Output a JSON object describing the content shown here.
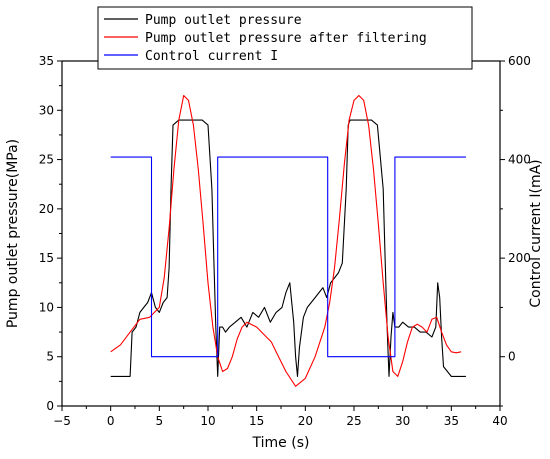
{
  "chart_data": {
    "type": "line",
    "xlabel": "Time (s)",
    "ylabel_left": "Pump outlet pressure(MPa)",
    "ylabel_right": "Control current I(mA)",
    "xlim": [
      -5,
      40
    ],
    "ylim_left": [
      0,
      35
    ],
    "ylim_right": [
      -100,
      600
    ],
    "x_ticks": [
      -5,
      0,
      5,
      10,
      15,
      20,
      25,
      30,
      35,
      40
    ],
    "y_left_ticks": [
      0,
      5,
      10,
      15,
      20,
      25,
      30,
      35
    ],
    "y_right_ticks": [
      0,
      200,
      400,
      600
    ],
    "legend_position": "top-left",
    "grid": false,
    "series": [
      {
        "name": "Pump outlet pressure",
        "axis": "left",
        "color": "#000000",
        "x": [
          0,
          1,
          2,
          2.2,
          2.6,
          3.0,
          3.4,
          3.8,
          4.2,
          4.6,
          5.0,
          5.4,
          5.8,
          6.0,
          6.2,
          6.4,
          7.0,
          7.6,
          8.2,
          8.8,
          9.4,
          10.0,
          10.4,
          10.6,
          10.8,
          11.0,
          11.2,
          11.5,
          11.8,
          12.2,
          12.8,
          13.4,
          14.0,
          14.6,
          15.2,
          15.8,
          16.4,
          17.0,
          17.6,
          18.0,
          18.4,
          18.8,
          19.0,
          19.2,
          19.4,
          19.8,
          20.2,
          20.6,
          21.0,
          21.4,
          21.8,
          22.2,
          22.6,
          23.0,
          23.4,
          23.8,
          24.2,
          24.4,
          24.6,
          25.0,
          25.6,
          26.2,
          26.8,
          27.4,
          28.0,
          28.2,
          28.4,
          28.6,
          28.8,
          29.0,
          29.2,
          29.6,
          30.0,
          30.6,
          31.2,
          31.8,
          32.4,
          33.0,
          33.4,
          33.6,
          33.8,
          34.0,
          34.2,
          34.6,
          35.0,
          35.5,
          36.0,
          36.5
        ],
        "y": [
          3.0,
          3.0,
          3.0,
          7.5,
          8.0,
          9.5,
          10.0,
          10.5,
          11.5,
          10.0,
          9.5,
          10.5,
          11.0,
          14.0,
          22.0,
          28.5,
          29.0,
          29.0,
          29.0,
          29.0,
          29.0,
          28.5,
          22.0,
          15.0,
          8.0,
          3.0,
          8.0,
          8.0,
          7.5,
          8.0,
          8.5,
          9.0,
          8.0,
          9.5,
          9.0,
          10.0,
          8.5,
          9.5,
          10.0,
          11.5,
          12.5,
          8.5,
          5.0,
          3.0,
          6.0,
          9.0,
          10.0,
          10.5,
          11.0,
          11.5,
          12.0,
          11.0,
          12.5,
          13.0,
          13.5,
          14.5,
          22.0,
          28.5,
          29.0,
          29.0,
          29.0,
          29.0,
          29.0,
          28.5,
          22.0,
          15.0,
          8.0,
          3.0,
          7.0,
          9.5,
          8.0,
          8.0,
          8.5,
          8.0,
          8.0,
          7.5,
          7.5,
          7.0,
          8.0,
          12.5,
          11.0,
          7.0,
          4.0,
          3.5,
          3.0,
          3.0,
          3.0,
          3.0
        ]
      },
      {
        "name": "Pump outlet pressure after filtering",
        "axis": "left",
        "color": "#ff0000",
        "x": [
          0,
          1,
          2,
          3,
          4,
          5,
          5.5,
          6.0,
          6.5,
          7.0,
          7.5,
          8.0,
          8.5,
          9.0,
          9.5,
          10.0,
          10.5,
          11.0,
          11.5,
          12.0,
          12.5,
          13.0,
          13.5,
          14.0,
          15.0,
          16.0,
          16.5,
          17.0,
          18.0,
          19.0,
          20.0,
          21.0,
          22.0,
          22.5,
          23.0,
          23.5,
          24.0,
          24.5,
          25.0,
          25.5,
          26.0,
          26.5,
          27.0,
          27.5,
          28.0,
          28.5,
          29.0,
          29.5,
          30.0,
          30.5,
          31.0,
          31.5,
          32.0,
          32.5,
          33.0,
          33.5,
          34.0,
          34.5,
          35.0,
          35.5,
          36.0
        ],
        "y": [
          5.5,
          6.2,
          7.5,
          8.8,
          9.0,
          10.0,
          13.0,
          18.0,
          24.0,
          29.0,
          31.5,
          31.0,
          28.5,
          24.0,
          18.5,
          12.5,
          8.0,
          5.0,
          3.5,
          3.8,
          5.0,
          6.8,
          8.0,
          8.5,
          8.0,
          7.0,
          6.5,
          5.5,
          3.5,
          2.0,
          2.8,
          5.0,
          8.0,
          10.5,
          14.0,
          19.0,
          24.5,
          29.0,
          31.0,
          31.5,
          31.0,
          28.5,
          24.0,
          18.5,
          12.5,
          7.0,
          3.5,
          3.0,
          4.5,
          6.5,
          8.0,
          8.3,
          8.0,
          7.5,
          8.8,
          9.0,
          7.5,
          6.2,
          5.5,
          5.4,
          5.5
        ]
      },
      {
        "name": "Control current I",
        "axis": "right",
        "color": "#0000ff",
        "x": [
          0,
          4.2,
          4.2,
          11.0,
          11.0,
          22.3,
          22.3,
          29.2,
          29.2,
          36.5
        ],
        "y": [
          405,
          405,
          0,
          0,
          405,
          405,
          0,
          0,
          405,
          405
        ]
      }
    ]
  }
}
